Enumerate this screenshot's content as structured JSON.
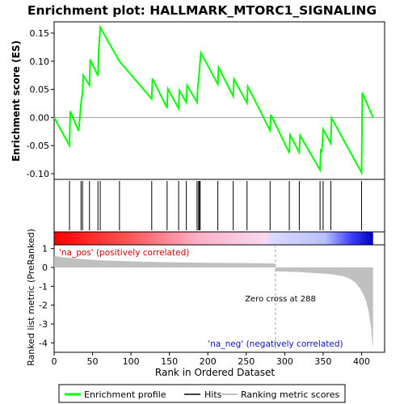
{
  "chart_data": {
    "type": "line",
    "title": "Enrichment plot: HALLMARK_MTORC1_SIGNALING",
    "top_panel": {
      "ylabel": "Enrichment score (ES)",
      "ylim": [
        -0.11,
        0.17
      ],
      "yticks": [
        -0.1,
        -0.05,
        0.0,
        0.05,
        0.1,
        0.15
      ],
      "ytick_labels": [
        "-0.10",
        "-0.05",
        "0.00",
        "0.05",
        "0.10",
        "0.15"
      ],
      "series": [
        {
          "name": "Enrichment profile",
          "color": "#00ff00",
          "x": [
            0,
            20,
            21,
            32,
            35,
            36,
            37,
            38,
            46,
            47,
            57,
            58,
            60,
            85,
            127,
            128,
            147,
            148,
            162,
            163,
            172,
            173,
            186,
            187,
            188,
            189,
            190,
            191,
            213,
            214,
            233,
            234,
            251,
            252,
            281,
            282,
            306,
            307,
            319,
            320,
            346,
            347,
            348,
            349,
            350,
            360,
            361,
            400,
            401,
            415
          ],
          "y": [
            0.0,
            -0.05,
            0.011,
            -0.024,
            0.025,
            0.035,
            0.045,
            0.075,
            0.057,
            0.103,
            0.074,
            0.12,
            0.16,
            0.1,
            0.033,
            0.069,
            0.017,
            0.051,
            0.016,
            0.048,
            0.027,
            0.057,
            0.027,
            0.057,
            0.065,
            0.083,
            0.1,
            0.115,
            0.059,
            0.089,
            0.038,
            0.068,
            0.026,
            0.055,
            -0.023,
            0.005,
            -0.063,
            -0.031,
            -0.062,
            -0.032,
            -0.093,
            -0.056,
            -0.062,
            -0.048,
            -0.021,
            -0.046,
            -0.001,
            -0.098,
            0.044,
            0.0
          ]
        }
      ]
    },
    "hits": {
      "name": "Hits",
      "positions": [
        20,
        35,
        37,
        46,
        57,
        60,
        85,
        127,
        147,
        162,
        172,
        186,
        188,
        189,
        190,
        213,
        233,
        251,
        281,
        306,
        319,
        346,
        350,
        360,
        400
      ]
    },
    "bottom_panel": {
      "ylabel": "Ranked list metric (PreRanked)",
      "xlabel": "Rank in Ordered Dataset",
      "ylim": [
        -4.5,
        1.2
      ],
      "yticks": [
        1,
        0,
        -1,
        -2,
        -3,
        -4
      ],
      "ytick_labels": [
        "1",
        "0",
        "-1",
        "-2",
        "-3",
        "-4"
      ],
      "series": [
        {
          "name": "Ranking metric scores",
          "color": "#c0c0c0",
          "x": [
            0,
            10,
            20,
            40,
            60,
            80,
            100,
            130,
            160,
            200,
            250,
            287,
            288,
            300,
            320,
            340,
            360,
            375,
            385,
            392,
            398,
            402,
            406,
            409,
            411,
            413,
            414,
            415
          ],
          "y": [
            0.62,
            0.55,
            0.5,
            0.43,
            0.38,
            0.35,
            0.32,
            0.29,
            0.27,
            0.25,
            0.23,
            0.21,
            -0.2,
            -0.22,
            -0.25,
            -0.3,
            -0.36,
            -0.45,
            -0.6,
            -0.8,
            -1.1,
            -1.4,
            -1.8,
            -2.3,
            -2.8,
            -3.4,
            -4.0,
            -4.2
          ]
        }
      ],
      "annotations": {
        "zero_cross": "Zero cross at 288",
        "pos_label": "'na_pos' (positively correlated)",
        "neg_label": "'na_neg' (negatively correlated)"
      },
      "zero_cross_rank": 288
    },
    "xlim": [
      0,
      430
    ],
    "xticks": [
      0,
      50,
      100,
      150,
      200,
      250,
      300,
      350,
      400
    ],
    "xtick_labels": [
      "0",
      "50",
      "100",
      "150",
      "200",
      "250",
      "300",
      "350",
      "400"
    ],
    "legend": {
      "placement": "bottom",
      "entries": [
        "Enrichment profile",
        "Hits",
        "Ranking metric scores"
      ]
    },
    "colors": {
      "profile": "#00ff00",
      "hits": "#000000",
      "metric": "#c0c0c0",
      "pos_label": "#d00000",
      "neg_label": "#1010c0",
      "zero_line": "#a0a0a0"
    }
  }
}
